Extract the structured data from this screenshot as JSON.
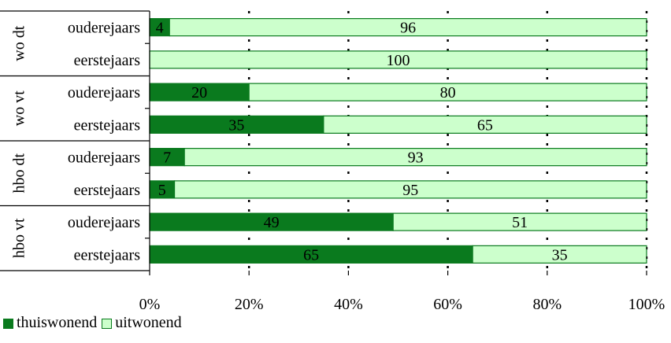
{
  "chart_data": {
    "type": "bar",
    "orientation": "horizontal",
    "stacked": true,
    "groups": [
      {
        "label": "wo dt",
        "categories": [
          "ouderejaars",
          "eerstejaars"
        ]
      },
      {
        "label": "wo vt",
        "categories": [
          "ouderejaars",
          "eerstejaars"
        ]
      },
      {
        "label": "hbo dt",
        "categories": [
          "ouderejaars",
          "eerstejaars"
        ]
      },
      {
        "label": "hbo vt",
        "categories": [
          "ouderejaars",
          "eerstejaars"
        ]
      }
    ],
    "categories": [
      "ouderejaars",
      "eerstejaars",
      "ouderejaars",
      "eerstejaars",
      "ouderejaars",
      "eerstejaars",
      "ouderejaars",
      "eerstejaars"
    ],
    "series": [
      {
        "name": "thuiswonend",
        "color": "#0a7a1e",
        "values": [
          4,
          0,
          20,
          35,
          7,
          5,
          49,
          65
        ]
      },
      {
        "name": "uitwonend",
        "color": "#ccffcc",
        "values": [
          96,
          100,
          80,
          65,
          93,
          95,
          51,
          35
        ]
      }
    ],
    "xlim": [
      0,
      100
    ],
    "xticks": [
      "0%",
      "20%",
      "40%",
      "60%",
      "80%",
      "100%"
    ],
    "grid": "dotted vertical",
    "legend_position": "bottom-left"
  }
}
